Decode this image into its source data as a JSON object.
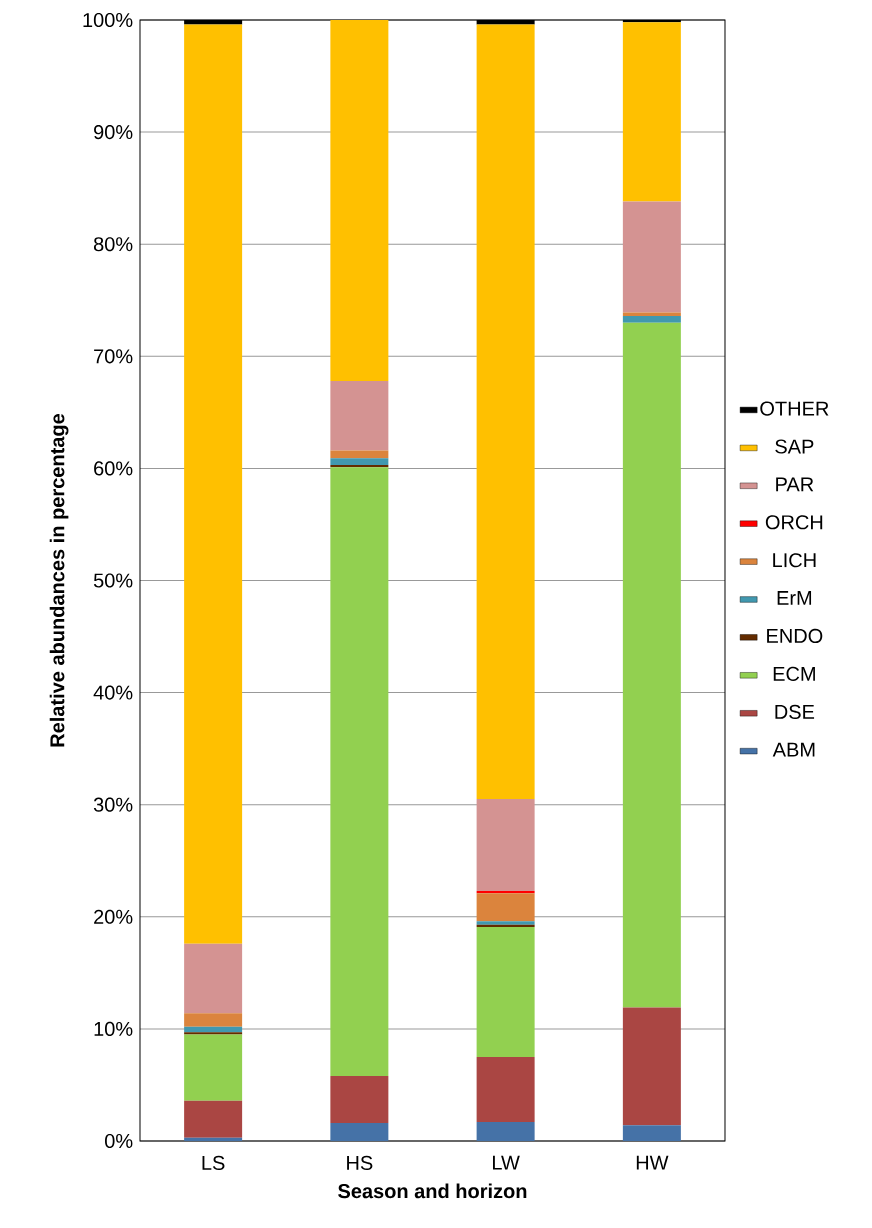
{
  "chart_data": {
    "type": "bar",
    "stacked": true,
    "xlabel": "Season and horizon",
    "ylabel": "Relative abundances in percentage",
    "categories": [
      "LS",
      "HS",
      "LW",
      "HW"
    ],
    "series": [
      {
        "name": "ABM",
        "color": "#4572a7",
        "values": [
          0.3,
          1.6,
          1.7,
          1.4
        ]
      },
      {
        "name": "DSE",
        "color": "#aa4643",
        "values": [
          3.3,
          4.2,
          5.8,
          10.5
        ]
      },
      {
        "name": "ECM",
        "color": "#92d050",
        "values": [
          5.9,
          54.3,
          11.6,
          61.1
        ]
      },
      {
        "name": "ENDO",
        "color": "#632b00",
        "values": [
          0.2,
          0.2,
          0.2,
          0
        ]
      },
      {
        "name": "ErM",
        "color": "#4198af",
        "values": [
          0.5,
          0.6,
          0.3,
          0.6
        ]
      },
      {
        "name": "LICH",
        "color": "#db843d",
        "values": [
          1.2,
          0.7,
          2.5,
          0.3
        ]
      },
      {
        "name": "ORCH",
        "color": "#ff0000",
        "values": [
          0,
          0,
          0.2,
          0
        ]
      },
      {
        "name": "PAR",
        "color": "#d49392",
        "values": [
          6.2,
          6.2,
          8.2,
          9.9
        ]
      },
      {
        "name": "SAP",
        "color": "#ffc000",
        "values": [
          82.0,
          32.2,
          69.1,
          16.0
        ]
      },
      {
        "name": "OTHER",
        "color": "#000000",
        "values": [
          0.4,
          0,
          0.4,
          0.2
        ]
      }
    ],
    "ylim": [
      0,
      100
    ],
    "yticks": [
      {
        "value": 0,
        "label": "0%"
      },
      {
        "value": 10,
        "label": "10%"
      },
      {
        "value": 20,
        "label": "20%"
      },
      {
        "value": 30,
        "label": "30%"
      },
      {
        "value": 40,
        "label": "40%"
      },
      {
        "value": 50,
        "label": "50%"
      },
      {
        "value": 60,
        "label": "60%"
      },
      {
        "value": 70,
        "label": "70%"
      },
      {
        "value": 80,
        "label": "80%"
      },
      {
        "value": 90,
        "label": "90%"
      },
      {
        "value": 100,
        "label": "100%"
      }
    ],
    "grid": "y",
    "legend": "right"
  }
}
